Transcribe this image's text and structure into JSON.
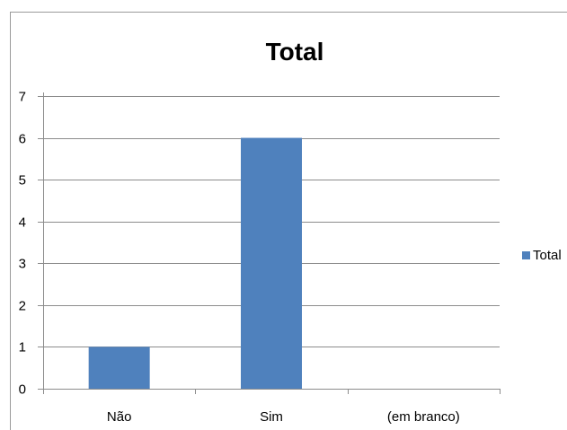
{
  "chart_data": {
    "type": "bar",
    "title": "Total",
    "categories": [
      "Não",
      "Sim",
      "(em branco)"
    ],
    "series": [
      {
        "name": "Total",
        "values": [
          1,
          6,
          null
        ]
      }
    ],
    "ylim": [
      0,
      7
    ],
    "yticks": [
      0,
      1,
      2,
      3,
      4,
      5,
      6,
      7
    ],
    "xlabel": "",
    "ylabel": "",
    "grid": true,
    "legend_position": "right",
    "colors": {
      "bar": "#4F81BD",
      "grid": "#8c8c8c",
      "axis": "#8c8c8c",
      "frame": "#9a9a9a"
    }
  }
}
